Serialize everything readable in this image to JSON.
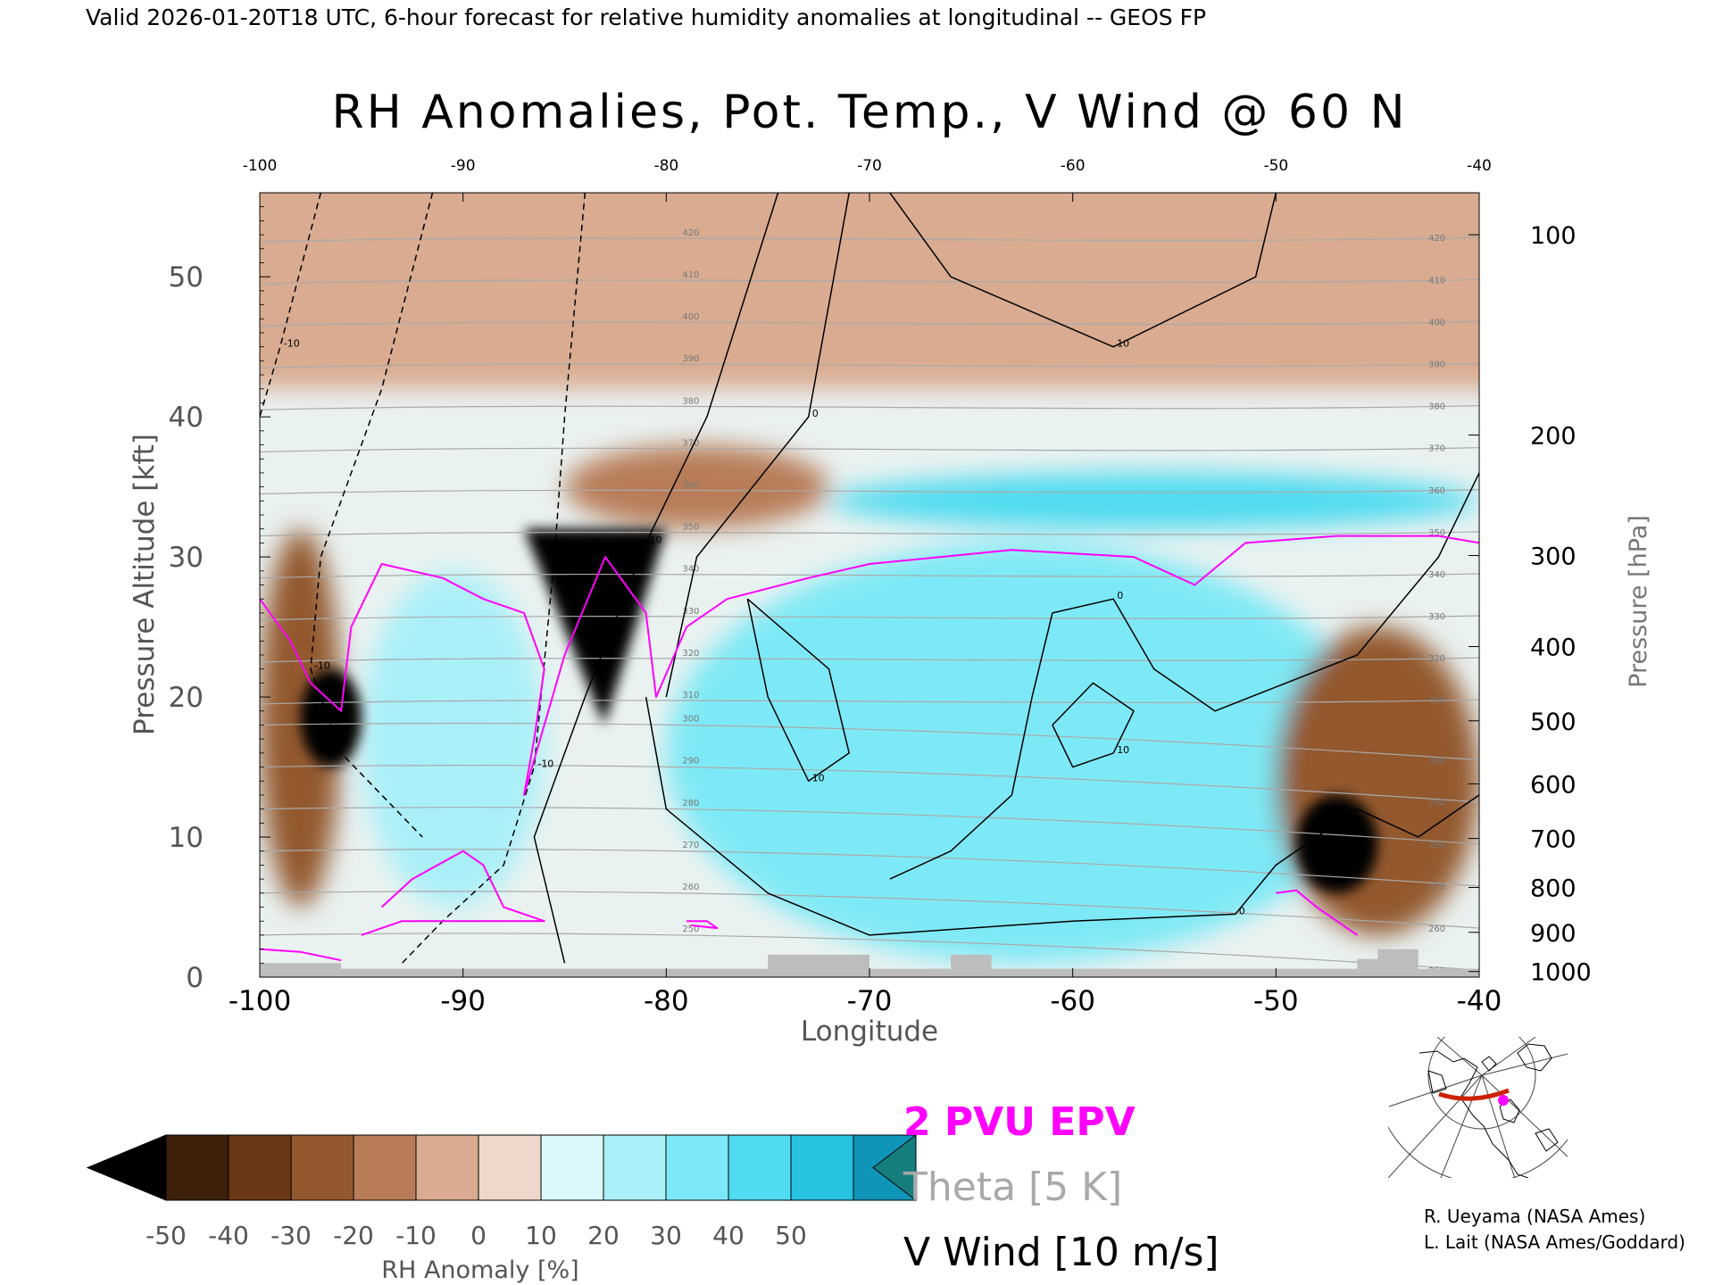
{
  "header": {
    "valid_line": "Valid 2026-01-20T18 UTC, 6-hour forecast for relative humidity anomalies at longitudinal -- GEOS FP"
  },
  "chart_data": {
    "type": "heatmap",
    "title": "RH Anomalies, Pot. Temp., V Wind @ 60 N",
    "xlabel": "Longitude",
    "ylabel": "Pressure Altitude [kft]",
    "ylabel_right": "Pressure [hPa]",
    "xlim": [
      -100,
      -40
    ],
    "ylim": [
      0,
      56
    ],
    "x_ticks": [
      "-100",
      "-90",
      "-80",
      "-70",
      "-60",
      "-50",
      "-40"
    ],
    "x_tick_values": [
      -100,
      -90,
      -80,
      -70,
      -60,
      -50,
      -40
    ],
    "y_ticks": [
      "0",
      "10",
      "20",
      "30",
      "40",
      "50"
    ],
    "y_tick_values": [
      0,
      10,
      20,
      30,
      40,
      50
    ],
    "pressure_ticks": [
      {
        "label": "100",
        "kft": 53.0
      },
      {
        "label": "200",
        "kft": 38.7
      },
      {
        "label": "300",
        "kft": 30.1
      },
      {
        "label": "400",
        "kft": 23.6
      },
      {
        "label": "500",
        "kft": 18.3
      },
      {
        "label": "600",
        "kft": 13.8
      },
      {
        "label": "700",
        "kft": 9.9
      },
      {
        "label": "800",
        "kft": 6.4
      },
      {
        "label": "900",
        "kft": 3.2
      },
      {
        "label": "1000",
        "kft": 0.4
      }
    ],
    "rh_anomaly_regions": [
      {
        "label": "dry stratosphere",
        "x": [
          -100,
          -40
        ],
        "y": [
          42,
          56
        ],
        "value": -3
      },
      {
        "label": "dry west lower",
        "x": [
          -100,
          -96
        ],
        "y": [
          5,
          32
        ],
        "value": -25
      },
      {
        "label": "dry core west",
        "x": [
          -98,
          -95
        ],
        "y": [
          15,
          22
        ],
        "value": -50
      },
      {
        "label": "dry core -84",
        "x": [
          -87,
          -80
        ],
        "y": [
          18,
          32
        ],
        "value": -50
      },
      {
        "label": "dry tongue -78..-70",
        "x": [
          -85,
          -72
        ],
        "y": [
          32,
          38
        ],
        "value": -20
      },
      {
        "label": "moist west pocket",
        "x": [
          -95,
          -86
        ],
        "y": [
          5,
          29
        ],
        "value": 15
      },
      {
        "label": "moist central",
        "x": [
          -80,
          -45
        ],
        "y": [
          1,
          31
        ],
        "value": 25
      },
      {
        "label": "moist upper band",
        "x": [
          -72,
          -40
        ],
        "y": [
          32,
          36
        ],
        "value": 30
      },
      {
        "label": "dry east lower",
        "x": [
          -50,
          -40
        ],
        "y": [
          3,
          25
        ],
        "value": -30
      },
      {
        "label": "dry core east",
        "x": [
          -49,
          -45
        ],
        "y": [
          6,
          13
        ],
        "value": -50
      }
    ],
    "theta_contours_K": [
      250,
      260,
      270,
      280,
      290,
      300,
      310,
      320,
      330,
      340,
      350,
      360,
      370,
      380,
      390,
      400,
      410,
      420
    ],
    "v_wind_contours_m_s": [
      -10,
      0,
      10
    ],
    "overlay_contours": [
      "2 PVU EPV"
    ],
    "colorbar": {
      "label": "RH Anomaly [%]",
      "ticks": [
        "-50",
        "-40",
        "-30",
        "-20",
        "-10",
        "0",
        "10",
        "20",
        "30",
        "40",
        "50"
      ],
      "colors": [
        "#000000",
        "#3e1f0a",
        "#6b3816",
        "#93582f",
        "#b87d58",
        "#d9ab90",
        "#efd8cb",
        "#dcf7fa",
        "#aaf0f8",
        "#7ee9f6",
        "#4fdbf0",
        "#26c2df",
        "#0f95b7",
        "#157f80"
      ]
    },
    "legend": {
      "pvu": "2 PVU EPV",
      "theta": "Theta [5 K]",
      "vwind": "V Wind [10 m/s]",
      "placement": "bottom-center"
    },
    "colors": {
      "pvu": "#ff00ff",
      "theta": "#a9a9a9",
      "vwind": "#000000",
      "terrain": "#bdbdbd"
    }
  },
  "credits": {
    "line1": "R. Ueyama (NASA Ames)",
    "line2": "L. Lait (NASA Ames/Goddard)"
  },
  "inset_map": {
    "icon": "location-map-icon",
    "colors": {
      "section_line": "#cc2200",
      "marker": "#ff00ff"
    }
  }
}
